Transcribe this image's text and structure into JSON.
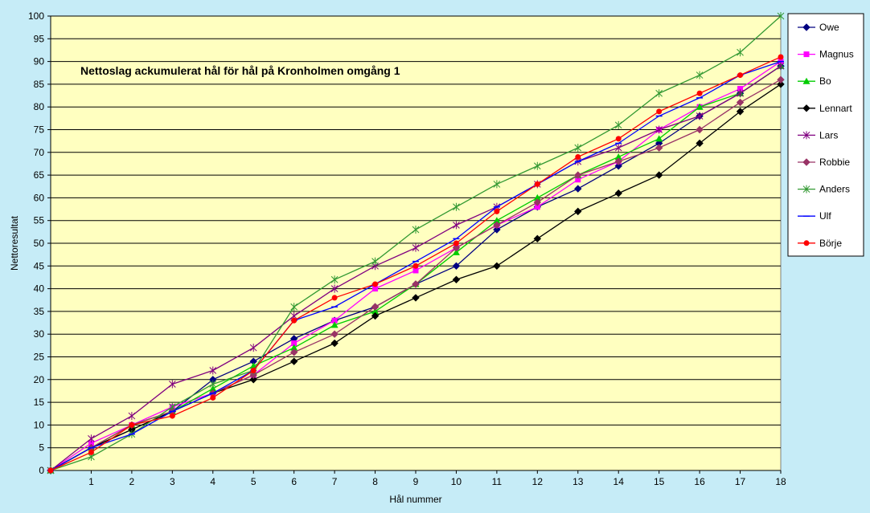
{
  "chart_data": {
    "type": "line",
    "title": "Nettoslag ackumulerat hål för hål på Kronholmen omgång 1",
    "xlabel": "Hål nummer",
    "ylabel": "Nettoresultat",
    "x": [
      0,
      1,
      2,
      3,
      4,
      5,
      6,
      7,
      8,
      9,
      10,
      11,
      12,
      13,
      14,
      15,
      16,
      17,
      18
    ],
    "x_tick_labels": [
      "1",
      "2",
      "3",
      "4",
      "5",
      "6",
      "7",
      "8",
      "9",
      "10",
      "11",
      "12",
      "13",
      "14",
      "15",
      "16",
      "17",
      "18"
    ],
    "y_ticks": [
      0,
      5,
      10,
      15,
      20,
      25,
      30,
      35,
      40,
      45,
      50,
      55,
      60,
      65,
      70,
      75,
      80,
      85,
      90,
      95,
      100
    ],
    "xlim": [
      0,
      18
    ],
    "ylim": [
      0,
      100
    ],
    "grid": "horizontal",
    "legend_position": "right",
    "plot_background": "#ffffc0",
    "page_background": "#c6ecf7",
    "series": [
      {
        "name": "Owe",
        "color": "#000080",
        "marker": "diamond",
        "values": [
          0,
          5,
          9,
          13,
          20,
          24,
          29,
          33,
          36,
          41,
          45,
          53,
          58,
          62,
          67,
          72,
          78,
          83,
          89
        ]
      },
      {
        "name": "Magnus",
        "color": "#ff00ff",
        "marker": "square",
        "values": [
          0,
          6,
          10,
          14,
          17,
          21,
          28,
          33,
          40,
          44,
          49,
          54,
          58,
          64,
          68,
          75,
          80,
          84,
          90
        ]
      },
      {
        "name": "Bo",
        "color": "#00cc00",
        "marker": "triangle",
        "values": [
          0,
          5,
          10,
          13,
          18,
          23,
          27,
          32,
          35,
          41,
          48,
          55,
          60,
          65,
          69,
          73,
          80,
          83,
          89
        ]
      },
      {
        "name": "Lennart",
        "color": "#000000",
        "marker": "diamond",
        "values": [
          0,
          5,
          9,
          13,
          17,
          20,
          24,
          28,
          34,
          38,
          42,
          45,
          51,
          57,
          61,
          65,
          72,
          79,
          85
        ]
      },
      {
        "name": "Lars",
        "color": "#800080",
        "marker": "asterisk",
        "values": [
          0,
          7,
          12,
          19,
          22,
          27,
          34,
          40,
          45,
          49,
          54,
          58,
          63,
          68,
          71,
          75,
          78,
          83,
          89
        ]
      },
      {
        "name": "Robbie",
        "color": "#993366",
        "marker": "diamond",
        "values": [
          0,
          5,
          10,
          13,
          17,
          21,
          26,
          30,
          36,
          41,
          49,
          54,
          59,
          65,
          68,
          71,
          75,
          81,
          86
        ]
      },
      {
        "name": "Anders",
        "color": "#339933",
        "marker": "asterisk",
        "values": [
          0,
          3,
          8,
          14,
          19,
          22,
          36,
          42,
          46,
          53,
          58,
          63,
          67,
          71,
          76,
          83,
          87,
          92,
          100
        ]
      },
      {
        "name": "Ulf",
        "color": "#0000ff",
        "marker": "dash",
        "values": [
          0,
          5,
          8,
          13,
          17,
          22,
          33,
          36,
          41,
          46,
          51,
          58,
          63,
          68,
          72,
          78,
          82,
          87,
          90
        ]
      },
      {
        "name": "Börje",
        "color": "#ff0000",
        "marker": "circle",
        "values": [
          0,
          4,
          10,
          12,
          16,
          22,
          33,
          38,
          41,
          45,
          50,
          57,
          63,
          69,
          73,
          79,
          83,
          87,
          91
        ]
      }
    ]
  }
}
